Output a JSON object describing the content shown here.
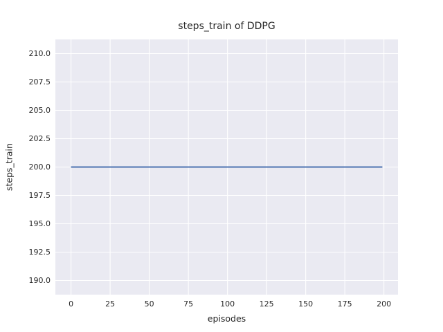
{
  "chart_data": {
    "type": "line",
    "title": "steps_train of DDPG",
    "xlabel": "episodes",
    "ylabel": "steps_train",
    "xlim": [
      -10,
      209
    ],
    "ylim": [
      188.75,
      211.25
    ],
    "xticks": [
      0,
      25,
      50,
      75,
      100,
      125,
      150,
      175,
      200
    ],
    "xtick_labels": [
      "0",
      "25",
      "50",
      "75",
      "100",
      "125",
      "150",
      "175",
      "200"
    ],
    "yticks": [
      190.0,
      192.5,
      195.0,
      197.5,
      200.0,
      202.5,
      205.0,
      207.5,
      210.0
    ],
    "ytick_labels": [
      "190.0",
      "192.5",
      "195.0",
      "197.5",
      "200.0",
      "202.5",
      "205.0",
      "207.5",
      "210.0"
    ],
    "grid": true,
    "legend": false,
    "series": [
      {
        "name": "steps_train",
        "color": "#4c72b0",
        "x": [
          0,
          199
        ],
        "y": [
          200,
          200
        ]
      }
    ],
    "style": {
      "axes_background": "#eaeaf2",
      "grid_color": "#ffffff",
      "text_color": "#262626",
      "figure_background": "#ffffff",
      "line_width": 2
    }
  }
}
